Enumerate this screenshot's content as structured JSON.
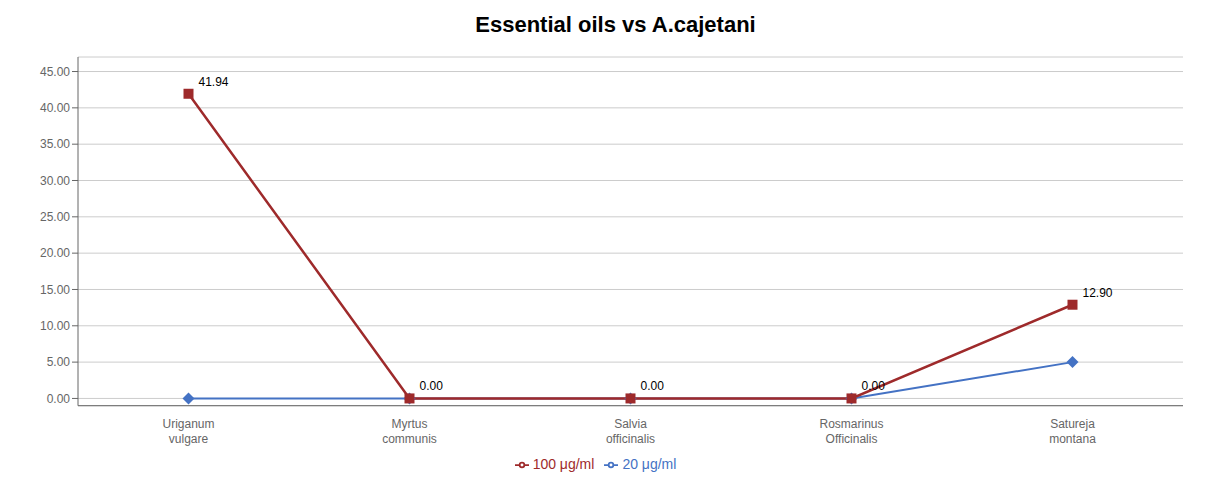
{
  "chart_data": {
    "type": "line",
    "title": "Essential oils vs A.cajetani",
    "categories": [
      "Uriganum\nvulgare",
      "Myrtus\ncommunis",
      "Salvia\nofficinalis",
      "Rosmarinus\nOfficinalis",
      "Satureja\nmontana"
    ],
    "series": [
      {
        "name": "20 μg/ml",
        "color": "#4472C4",
        "marker": "diamond",
        "values": [
          0.0,
          0.0,
          0.0,
          0.0,
          5.0
        ]
      },
      {
        "name": "100 μg/ml",
        "color": "#9E2A2B",
        "marker": "square",
        "values": [
          41.94,
          0.0,
          0.0,
          0.0,
          12.9
        ],
        "data_labels": true,
        "value_labels": [
          "41.94",
          "0.00",
          "0.00",
          "0.00",
          "12.90"
        ]
      }
    ],
    "ylim": [
      -1,
      47
    ],
    "yticks": [
      {
        "value": 0.0,
        "label": "0.00"
      },
      {
        "value": 5.0,
        "label": "5.00"
      },
      {
        "value": 10.0,
        "label": "10.00"
      },
      {
        "value": 15.0,
        "label": "15.00"
      },
      {
        "value": 20.0,
        "label": "20.00"
      },
      {
        "value": 25.0,
        "label": "25.00"
      },
      {
        "value": 30.0,
        "label": "30.00"
      },
      {
        "value": 35.0,
        "label": "35.00"
      },
      {
        "value": 40.0,
        "label": "40.00"
      },
      {
        "value": 45.0,
        "label": "45.00"
      }
    ],
    "grid": true,
    "legend": "bottom"
  }
}
